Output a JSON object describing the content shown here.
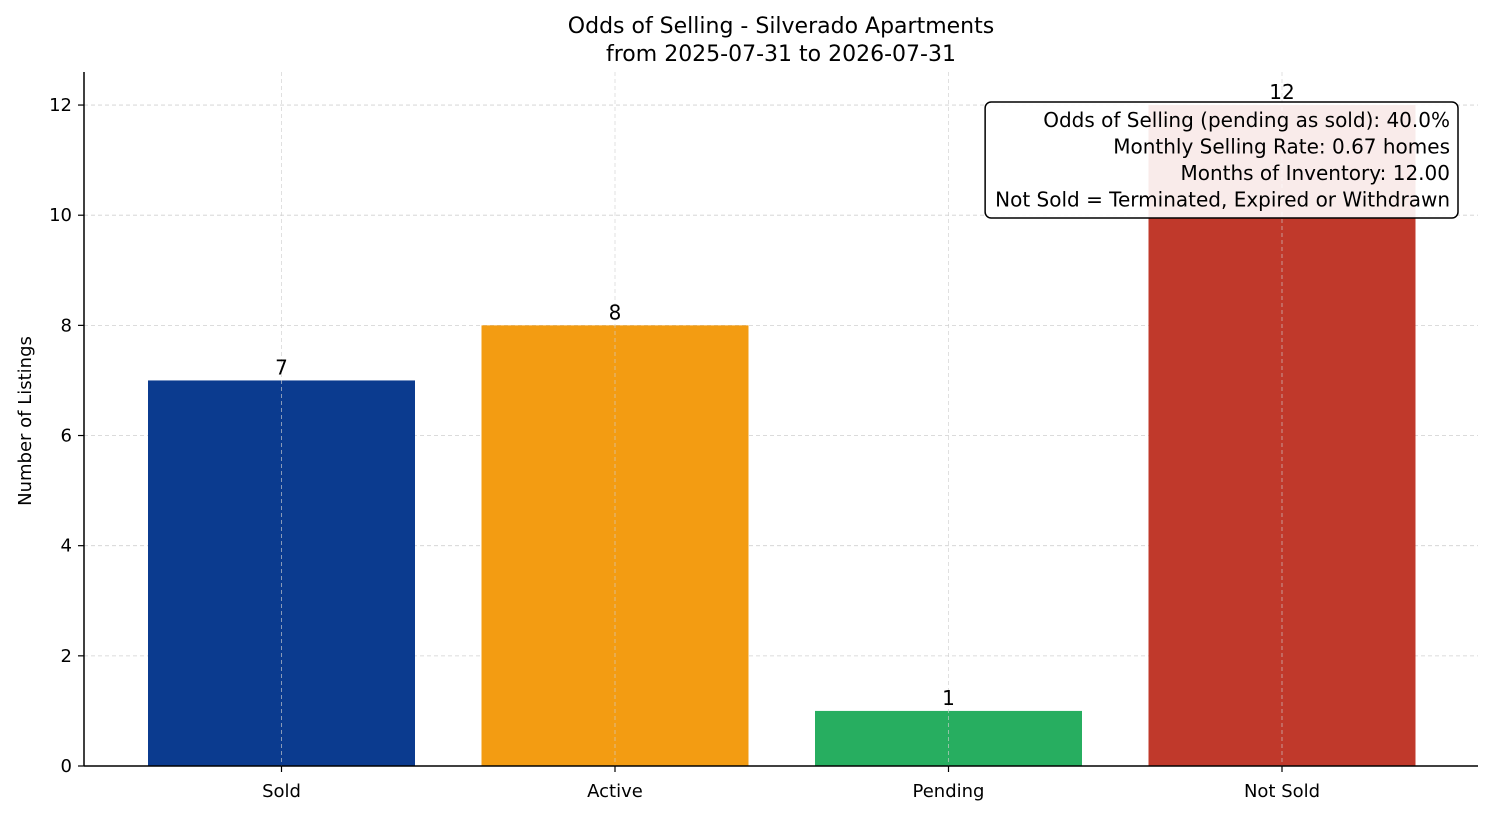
{
  "chart_data": {
    "type": "bar",
    "title": "Odds of Selling - Silverado Apartments",
    "subtitle": "from 2025-07-31 to 2026-07-31",
    "xlabel": "",
    "ylabel": "Number of Listings",
    "categories": [
      "Sold",
      "Active",
      "Pending",
      "Not Sold"
    ],
    "values": [
      7,
      8,
      1,
      12
    ],
    "colors": [
      "#0b3b8f",
      "#f39c12",
      "#27ae60",
      "#c0392b"
    ],
    "ylim": [
      0,
      12.6
    ],
    "yticks": [
      0,
      2,
      4,
      6,
      8,
      10,
      12
    ],
    "grid": true,
    "annotation": {
      "placement": "top-right",
      "lines": [
        "Odds of Selling (pending as sold): 40.0%",
        "Monthly Selling Rate: 0.67 homes",
        "Months of Inventory: 12.00",
        "Not Sold = Terminated, Expired or Withdrawn"
      ]
    }
  }
}
